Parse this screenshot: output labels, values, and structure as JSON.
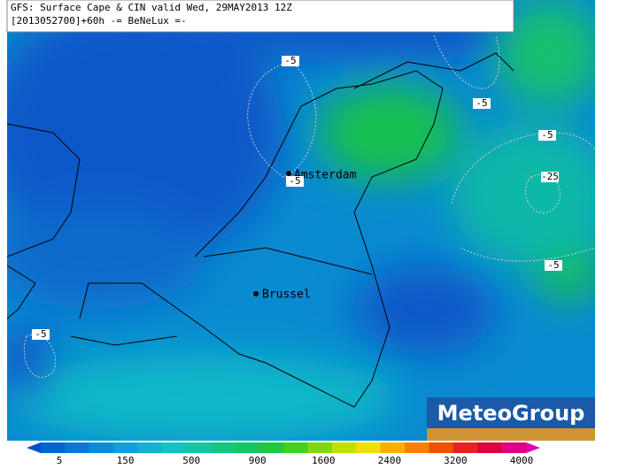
{
  "header": {
    "title": "GFS: Surface Cape & CIN valid Wed, 29MAY2013 12Z",
    "subtitle": "[2013052700]+60h -= BeNeLux =-"
  },
  "map": {
    "cities": [
      "Amsterdam",
      "Brussel"
    ],
    "contour_labels": [
      "-5",
      "-5",
      "-5",
      "-5",
      "-25",
      "-5",
      "-5"
    ]
  },
  "legend": {
    "labels": [
      5,
      150,
      500,
      900,
      1600,
      2400,
      3200,
      4000
    ],
    "colors": [
      "#0050c8",
      "#0064d2",
      "#0a78d8",
      "#0a8cd8",
      "#10a0d8",
      "#10b4d0",
      "#10c4c0",
      "#10c8a0",
      "#10c880",
      "#10c860",
      "#20c840",
      "#40d020",
      "#80d810",
      "#c0e000",
      "#f0e000",
      "#f8b000",
      "#f88000",
      "#f05000",
      "#e82020",
      "#e00040",
      "#e00080",
      "#e000b0"
    ]
  },
  "logo": "MeteoGroup"
}
